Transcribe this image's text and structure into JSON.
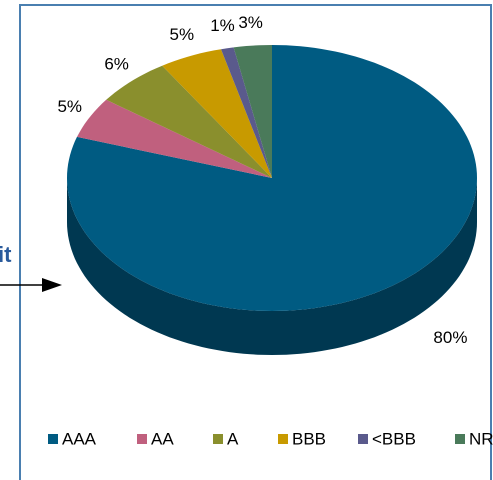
{
  "chart_data": {
    "type": "pie",
    "annotation": "it",
    "categories": [
      "AAA",
      "AA",
      "A",
      "BBB",
      "<BBB",
      "NR"
    ],
    "values": [
      80,
      5,
      6,
      5,
      1,
      3
    ],
    "value_labels": [
      "80%",
      "5%",
      "6%",
      "5%",
      "1%",
      "3%"
    ],
    "colors": [
      "#005b82",
      "#c0607e",
      "#8a8f2d",
      "#c89a00",
      "#5a5a8c",
      "#4a7a5a"
    ],
    "legend": "bottom"
  }
}
